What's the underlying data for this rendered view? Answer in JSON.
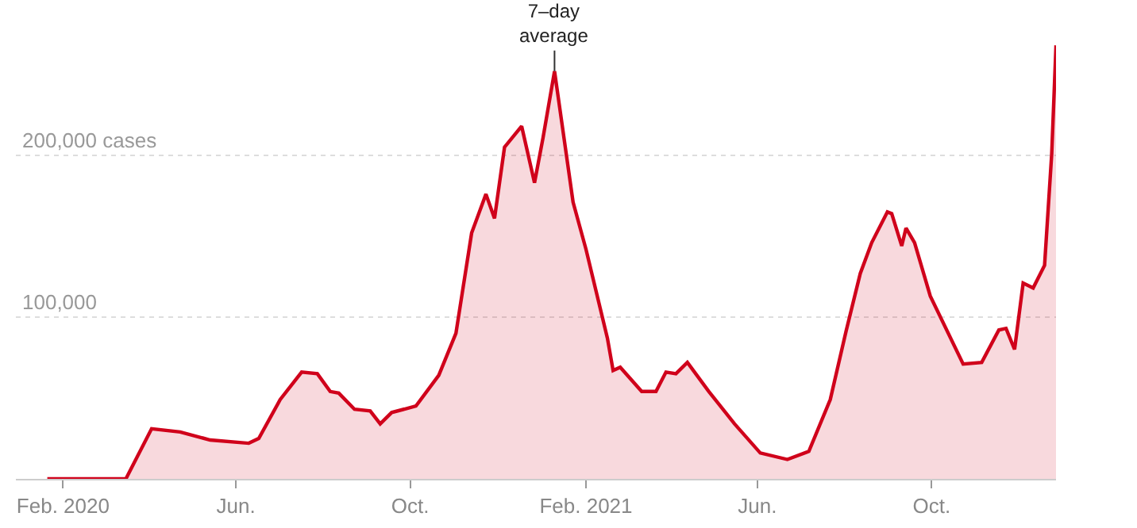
{
  "chart_data": {
    "type": "area",
    "x": [
      "2020-01-21",
      "2020-03-16",
      "2020-04-03",
      "2020-04-23",
      "2020-05-14",
      "2020-06-10",
      "2020-06-17",
      "2020-07-02",
      "2020-07-17",
      "2020-07-28",
      "2020-08-06",
      "2020-08-12",
      "2020-08-23",
      "2020-09-03",
      "2020-09-10",
      "2020-09-18",
      "2020-10-05",
      "2020-10-21",
      "2020-11-02",
      "2020-11-13",
      "2020-11-23",
      "2020-11-29",
      "2020-12-06",
      "2020-12-18",
      "2020-12-27",
      "2021-01-02",
      "2021-01-10",
      "2021-01-23",
      "2021-02-01",
      "2021-02-16",
      "2021-02-20",
      "2021-02-25",
      "2021-03-12",
      "2021-03-22",
      "2021-03-29",
      "2021-04-05",
      "2021-04-13",
      "2021-04-28",
      "2021-05-16",
      "2021-06-03",
      "2021-06-22",
      "2021-07-07",
      "2021-07-22",
      "2021-08-02",
      "2021-08-12",
      "2021-08-20",
      "2021-08-31",
      "2021-09-03",
      "2021-09-10",
      "2021-09-13",
      "2021-09-19",
      "2021-09-30",
      "2021-10-23",
      "2021-11-05",
      "2021-11-17",
      "2021-11-22",
      "2021-11-28",
      "2021-12-04",
      "2021-12-11",
      "2021-12-19",
      "2021-12-24",
      "2021-12-27"
    ],
    "series": [
      {
        "color": "#d0021b",
        "values": [
          0,
          0,
          31000,
          29000,
          24000,
          22000,
          25000,
          49000,
          66000,
          65000,
          54000,
          53000,
          43000,
          42000,
          34000,
          41000,
          45000,
          64000,
          90000,
          152000,
          176000,
          161000,
          205000,
          218000,
          183000,
          211000,
          252000,
          171000,
          142000,
          87000,
          67000,
          69000,
          54000,
          54000,
          66000,
          65000,
          72000,
          54000,
          34000,
          16000,
          12000,
          17000,
          49000,
          91000,
          127000,
          146000,
          165000,
          164000,
          144000,
          155000,
          146000,
          113000,
          71000,
          72000,
          92000,
          93000,
          80000,
          121000,
          118000,
          132000,
          201000,
          268000
        ]
      }
    ],
    "xlim": [
      "2019-12-30",
      "2021-12-27"
    ],
    "ylim": [
      0,
      296000
    ],
    "xticks": [
      {
        "value": "2020-02-01",
        "label": "Feb. 2020"
      },
      {
        "value": "2020-06-01",
        "label": "Jun."
      },
      {
        "value": "2020-10-01",
        "label": "Oct."
      },
      {
        "value": "2021-02-01",
        "label": "Feb. 2021"
      },
      {
        "value": "2021-06-01",
        "label": "Jun."
      },
      {
        "value": "2021-10-01",
        "label": "Oct."
      }
    ],
    "yticks": [
      {
        "value": 100000,
        "label": "100,000"
      },
      {
        "value": 200000,
        "label": "200,000 cases"
      }
    ],
    "grid": "y",
    "marker": "none",
    "line_style": "solid",
    "annotations": [
      {
        "text": "7–day\naverage",
        "x": "2021-01-10",
        "y": 252000
      }
    ]
  }
}
